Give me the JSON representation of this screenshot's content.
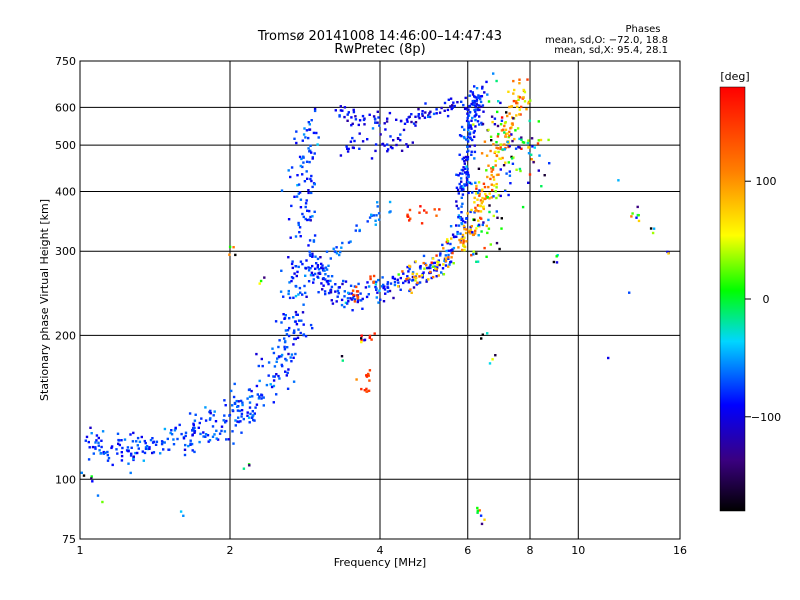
{
  "chart_data": {
    "type": "scatter",
    "title": "Tromsø 20141008 14:46:00–14:47:43",
    "subtitle": "RwPretec (8p)",
    "xlabel": "Frequency [MHz]",
    "ylabel": "Stationary phase Virtual Height [km]",
    "x_scale": "log",
    "y_scale": "log",
    "xlim": [
      1,
      16
    ],
    "ylim": [
      75,
      750
    ],
    "x_ticks": [
      1,
      2,
      4,
      6,
      8,
      10,
      16
    ],
    "x_tick_labels": [
      "1",
      "2",
      "4",
      "6",
      "8",
      "10",
      "16"
    ],
    "y_ticks": [
      75,
      100,
      200,
      300,
      400,
      500,
      600,
      750
    ],
    "y_tick_labels": [
      "75",
      "100",
      "200",
      "300",
      "400",
      "500",
      "600",
      "750"
    ],
    "grid": true,
    "stats": {
      "heading": "Phases",
      "line_o": "mean, sd,O: −72.0, 18.8",
      "line_x": "mean, sd,X:  95.4, 28.1"
    },
    "colorbar": {
      "label": "[deg]",
      "range": [
        -180,
        180
      ],
      "ticks": [
        100,
        0,
        -100
      ],
      "tick_labels": [
        "100",
        "0",
        "−100"
      ]
    },
    "traces": [
      {
        "name": "low-trace",
        "points": [
          [
            1.05,
            115
          ],
          [
            1.1,
            117
          ],
          [
            1.15,
            118
          ],
          [
            1.25,
            116
          ],
          [
            1.3,
            114
          ],
          [
            1.4,
            117
          ],
          [
            1.5,
            121
          ],
          [
            1.6,
            124
          ],
          [
            1.7,
            125
          ],
          [
            1.8,
            127
          ],
          [
            1.9,
            130
          ],
          [
            2.0,
            133
          ],
          [
            2.1,
            137
          ],
          [
            2.2,
            143
          ],
          [
            2.3,
            151
          ],
          [
            2.4,
            160
          ],
          [
            2.5,
            168
          ],
          [
            2.6,
            180
          ],
          [
            2.65,
            195
          ],
          [
            2.7,
            215
          ],
          [
            2.72,
            240
          ],
          [
            2.75,
            280
          ],
          [
            2.78,
            330
          ],
          [
            2.8,
            380
          ],
          [
            2.82,
            430
          ],
          [
            2.85,
            500
          ],
          [
            2.9,
            560
          ]
        ],
        "spread_x": 0.035,
        "spread_y": 0.045,
        "phase": -75,
        "phase_sd": 14,
        "count": 460
      },
      {
        "name": "o-trace-F",
        "points": [
          [
            2.9,
            300
          ],
          [
            3.0,
            270
          ],
          [
            3.1,
            255
          ],
          [
            3.3,
            245
          ],
          [
            3.5,
            243
          ],
          [
            3.8,
            245
          ],
          [
            4.1,
            250
          ],
          [
            4.4,
            258
          ],
          [
            4.7,
            265
          ],
          [
            5.0,
            272
          ],
          [
            5.3,
            283
          ],
          [
            5.55,
            305
          ],
          [
            5.75,
            340
          ],
          [
            5.85,
            380
          ],
          [
            5.9,
            420
          ],
          [
            5.95,
            460
          ],
          [
            6.0,
            500
          ],
          [
            6.05,
            540
          ],
          [
            6.1,
            580
          ],
          [
            6.2,
            620
          ],
          [
            6.4,
            640
          ]
        ],
        "spread_x": 0.02,
        "spread_y": 0.03,
        "phase": -82,
        "phase_sd": 16,
        "count": 420
      },
      {
        "name": "x-trace-F",
        "points": [
          [
            4.3,
            262
          ],
          [
            4.7,
            270
          ],
          [
            5.1,
            280
          ],
          [
            5.5,
            295
          ],
          [
            5.9,
            315
          ],
          [
            6.2,
            345
          ],
          [
            6.4,
            380
          ],
          [
            6.6,
            420
          ],
          [
            6.8,
            460
          ],
          [
            7.0,
            500
          ],
          [
            7.2,
            540
          ],
          [
            7.4,
            580
          ],
          [
            7.6,
            620
          ],
          [
            7.8,
            640
          ]
        ],
        "spread_x": 0.02,
        "spread_y": 0.035,
        "phase": 95,
        "phase_sd": 30,
        "count": 220
      },
      {
        "name": "upper-band",
        "points": [
          [
            3.3,
            590
          ],
          [
            3.6,
            570
          ],
          [
            4.0,
            555
          ],
          [
            4.5,
            565
          ],
          [
            5.0,
            580
          ],
          [
            5.5,
            600
          ],
          [
            6.0,
            615
          ],
          [
            3.3,
            490
          ],
          [
            3.8,
            495
          ],
          [
            4.5,
            510
          ]
        ],
        "spread_x": 0.025,
        "spread_y": 0.02,
        "phase": -95,
        "phase_sd": 15,
        "count": 130
      },
      {
        "name": "oblique-trace",
        "points": [
          [
            3.1,
            280
          ],
          [
            3.3,
            300
          ],
          [
            3.6,
            330
          ],
          [
            3.9,
            355
          ],
          [
            4.2,
            375
          ]
        ],
        "spread_x": 0.015,
        "spread_y": 0.02,
        "phase": -60,
        "phase_sd": 8,
        "count": 35
      },
      {
        "name": "mid-scatter",
        "points": [
          [
            6.2,
            300
          ],
          [
            6.6,
            350
          ],
          [
            7.0,
            420
          ],
          [
            7.5,
            480
          ],
          [
            8.0,
            520
          ],
          [
            8.3,
            450
          ],
          [
            6.5,
            560
          ],
          [
            7.2,
            600
          ]
        ],
        "spread_x": 0.04,
        "spread_y": 0.07,
        "phase": -20,
        "phase_sd": 85,
        "count": 140
      },
      {
        "name": "sparse-noise",
        "points": [
          [
            2.0,
            300
          ],
          [
            2.3,
            260
          ],
          [
            3.2,
            210
          ],
          [
            3.4,
            180
          ],
          [
            3.6,
            160
          ],
          [
            3.7,
            195
          ],
          [
            6.5,
            200
          ],
          [
            6.7,
            180
          ],
          [
            12,
            420
          ],
          [
            13,
            360
          ],
          [
            14,
            340
          ],
          [
            15,
            300
          ],
          [
            12.5,
            250
          ],
          [
            11.5,
            180
          ],
          [
            15,
            190
          ],
          [
            6.3,
            85
          ],
          [
            6.5,
            82
          ],
          [
            1.9,
            90
          ],
          [
            1.6,
            85
          ],
          [
            1.05,
            100
          ],
          [
            1.1,
            90
          ],
          [
            2.2,
            108
          ],
          [
            5,
            195
          ],
          [
            9,
            290
          ]
        ],
        "spread_x": 0.01,
        "spread_y": 0.015,
        "phase": -40,
        "phase_sd": 110,
        "count": 60
      },
      {
        "name": "reddish-cluster",
        "points": [
          [
            3.75,
            155
          ],
          [
            3.8,
            165
          ],
          [
            3.85,
            200
          ],
          [
            4.6,
            355
          ],
          [
            4.9,
            360
          ],
          [
            5.2,
            360
          ],
          [
            3.6,
            240
          ],
          [
            3.9,
            260
          ]
        ],
        "spread_x": 0.01,
        "spread_y": 0.02,
        "phase": 150,
        "phase_sd": 15,
        "count": 45
      }
    ]
  }
}
